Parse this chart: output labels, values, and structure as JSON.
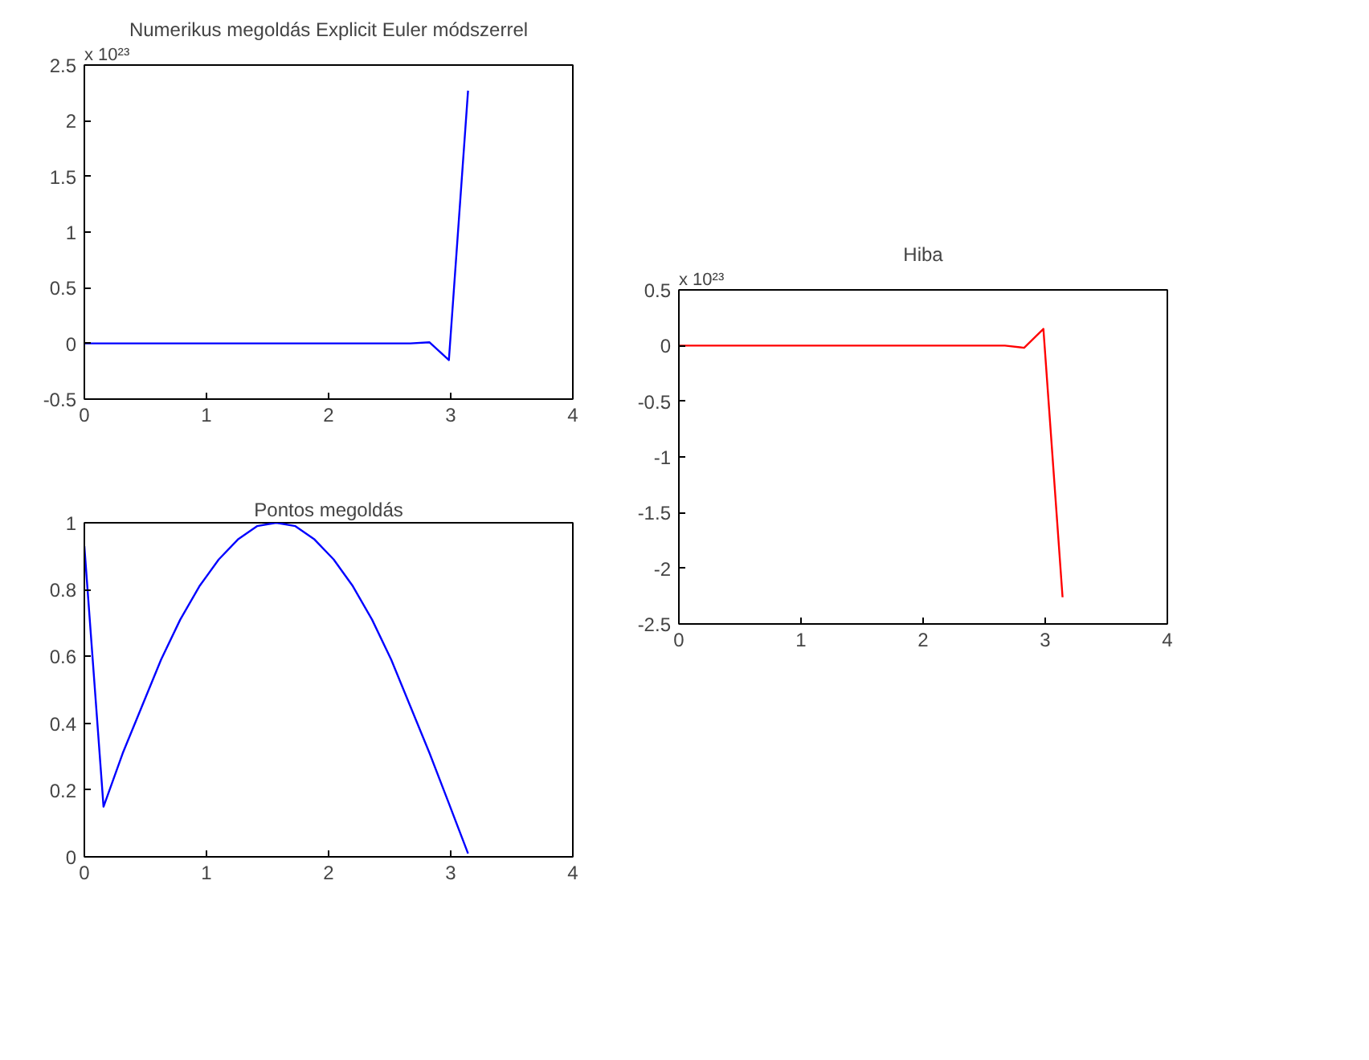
{
  "chart_data": [
    {
      "type": "line",
      "title": "Numerikus megoldás Explicit Euler módszerrel",
      "annotations": [
        "x 10²³"
      ],
      "x": [
        0,
        0.157,
        0.314,
        0.471,
        0.628,
        0.785,
        0.942,
        1.1,
        1.257,
        1.414,
        1.571,
        1.728,
        1.885,
        2.042,
        2.199,
        2.356,
        2.513,
        2.67,
        2.827,
        2.985,
        3.142
      ],
      "series": [
        {
          "color": "#0000ff",
          "values": [
            0,
            0,
            0,
            0,
            0,
            0,
            0,
            0,
            0,
            0,
            0,
            0,
            0,
            0,
            0,
            0,
            0,
            0,
            0.01,
            -0.15,
            2.27
          ]
        }
      ],
      "xlim": [
        0,
        4
      ],
      "xticks": [
        0,
        1,
        2,
        3,
        4
      ],
      "ylim": [
        -0.5,
        2.5
      ],
      "yticks": [
        -0.5,
        0,
        0.5,
        1,
        1.5,
        2,
        2.5
      ],
      "grid": false
    },
    {
      "type": "line",
      "title": "Pontos megoldás",
      "x": [
        0,
        0.157,
        0.314,
        0.471,
        0.628,
        0.785,
        0.942,
        1.1,
        1.257,
        1.414,
        1.571,
        1.728,
        1.885,
        2.042,
        2.199,
        2.356,
        2.513,
        2.67,
        2.827,
        2.985,
        3.142
      ],
      "series": [
        {
          "color": "#0000ff",
          "values": [
            0.93,
            0.15,
            0.31,
            0.45,
            0.59,
            0.71,
            0.81,
            0.89,
            0.95,
            0.99,
            1,
            0.99,
            0.95,
            0.89,
            0.81,
            0.71,
            0.59,
            0.45,
            0.31,
            0.16,
            0.01
          ]
        }
      ],
      "xlim": [
        0,
        4
      ],
      "xticks": [
        0,
        1,
        2,
        3,
        4
      ],
      "ylim": [
        0,
        1
      ],
      "yticks": [
        0,
        0.2,
        0.4,
        0.6,
        0.8,
        1
      ],
      "grid": false
    },
    {
      "type": "line",
      "title": "Hiba",
      "annotations": [
        "x 10²³"
      ],
      "x": [
        0,
        0.157,
        0.314,
        0.471,
        0.628,
        0.785,
        0.942,
        1.1,
        1.257,
        1.414,
        1.571,
        1.728,
        1.885,
        2.042,
        2.199,
        2.356,
        2.513,
        2.67,
        2.827,
        2.985,
        3.142
      ],
      "series": [
        {
          "color": "#ff0000",
          "values": [
            0,
            0,
            0,
            0,
            0,
            0,
            0,
            0,
            0,
            0,
            0,
            0,
            0,
            0,
            0,
            0,
            0,
            0,
            -0.02,
            0.15,
            -2.26
          ]
        }
      ],
      "xlim": [
        0,
        4
      ],
      "xticks": [
        0,
        1,
        2,
        3,
        4
      ],
      "ylim": [
        -2.5,
        0.5
      ],
      "yticks": [
        -2.5,
        -2,
        -1.5,
        -1,
        -0.5,
        0,
        0.5
      ],
      "grid": false
    }
  ]
}
